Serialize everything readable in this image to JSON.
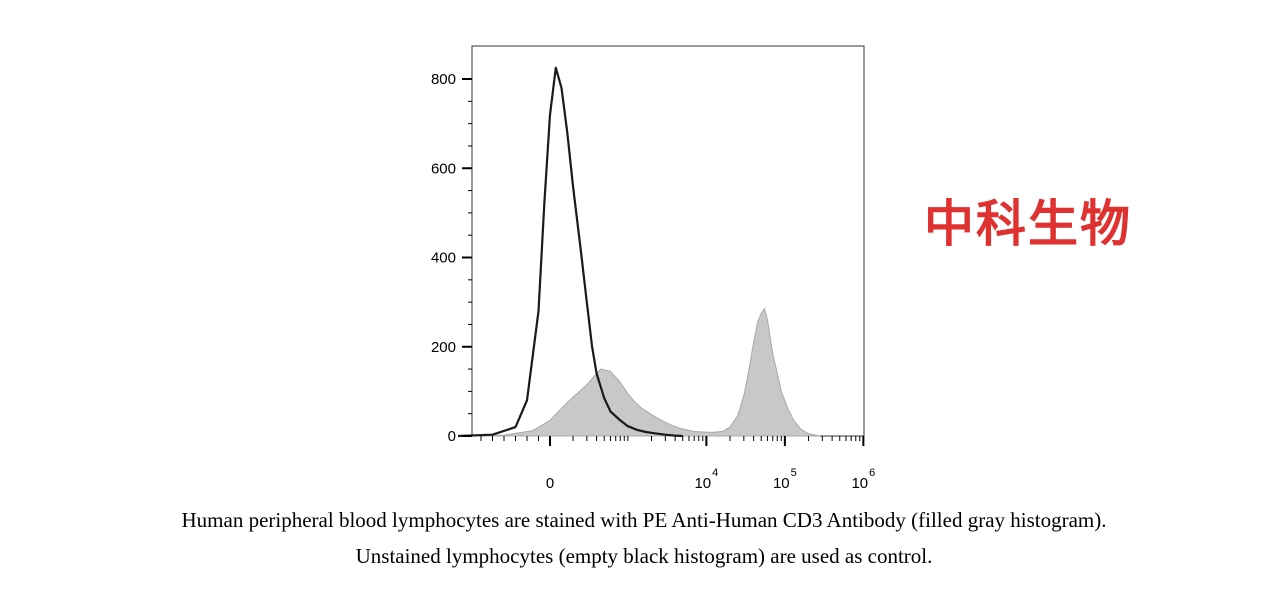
{
  "watermark": "中科生物",
  "caption": {
    "line1": "Human peripheral blood lymphocytes are stained with PE Anti-Human CD3 Antibody (filled gray histogram).",
    "line2": "Unstained lymphocytes (empty black histogram) are used as control."
  },
  "colors": {
    "filled": "#c8c8c8",
    "filled_edge": "#a8a8a8",
    "outline": "#1a1a1a",
    "watermark": "#e03131"
  },
  "chart_data": {
    "type": "area",
    "xscale": "biexponential",
    "xlim": [
      -1000,
      1000000
    ],
    "ylim": [
      0,
      850
    ],
    "title": "",
    "xlabel": "",
    "ylabel": "",
    "y_ticks": [
      {
        "value": 0,
        "label": "0"
      },
      {
        "value": 200,
        "label": "200"
      },
      {
        "value": 400,
        "label": "400"
      },
      {
        "value": 600,
        "label": "600"
      },
      {
        "value": 800,
        "label": "800"
      }
    ],
    "x_ticks": [
      {
        "value": 0,
        "base": "0",
        "exp": ""
      },
      {
        "value": 10000,
        "base": "10",
        "exp": "4"
      },
      {
        "value": 100000,
        "base": "10",
        "exp": "5"
      },
      {
        "value": 1000000,
        "base": "10",
        "exp": "6"
      }
    ],
    "series": [
      {
        "style": "filled",
        "x": [
          -700,
          -400,
          -150,
          0,
          150,
          300,
          450,
          600,
          800,
          1000,
          1200,
          1500,
          2000,
          2700,
          3500,
          4500,
          5500,
          7000,
          9000,
          12000,
          16000,
          20000,
          25000,
          30000,
          35000,
          40000,
          45000,
          50000,
          55000,
          60000,
          65000,
          70000,
          80000,
          90000,
          110000,
          130000,
          160000,
          200000,
          280000
        ],
        "y": [
          0,
          2,
          12,
          35,
          75,
          115,
          150,
          145,
          120,
          95,
          78,
          62,
          48,
          35,
          25,
          18,
          14,
          10,
          9,
          8,
          10,
          20,
          45,
          90,
          150,
          210,
          255,
          275,
          285,
          260,
          220,
          185,
          140,
          100,
          60,
          35,
          15,
          5,
          0
        ]
      },
      {
        "style": "outline",
        "x": [
          -800,
          -500,
          -300,
          -200,
          -100,
          -50,
          0,
          50,
          100,
          150,
          200,
          250,
          300,
          350,
          400,
          500,
          600,
          800,
          1000,
          1300,
          1700,
          2200,
          3000,
          4000,
          5000
        ],
        "y": [
          0,
          3,
          20,
          80,
          280,
          520,
          720,
          825,
          780,
          680,
          560,
          420,
          300,
          200,
          140,
          85,
          55,
          35,
          22,
          14,
          9,
          6,
          3,
          1,
          0
        ]
      }
    ]
  }
}
